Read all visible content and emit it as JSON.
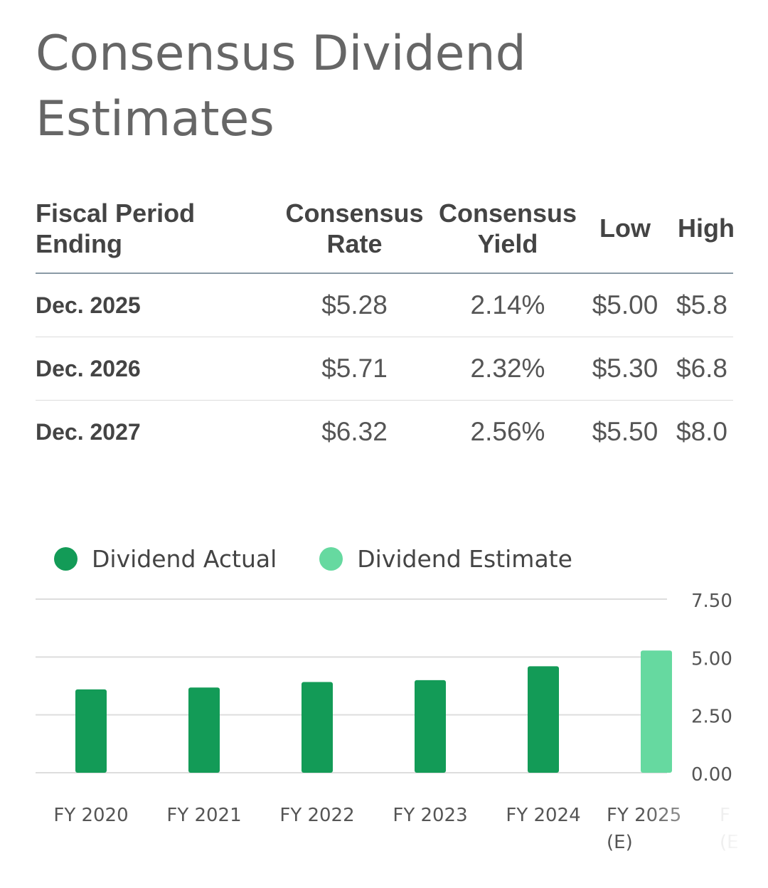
{
  "page": {
    "title": "Consensus Dividend Estimates"
  },
  "table": {
    "headers": [
      {
        "line1": "Fiscal Period",
        "line2": "Ending"
      },
      {
        "line1": "Consensus",
        "line2": "Rate"
      },
      {
        "line1": "Consensus",
        "line2": "Yield"
      },
      {
        "line1": "Low",
        "line2": ""
      },
      {
        "line1": "High",
        "line2": ""
      }
    ],
    "rows": [
      {
        "period": "Dec. 2025",
        "rate": "$5.28",
        "yield": "2.14%",
        "low": "$5.00",
        "high": "$5.8"
      },
      {
        "period": "Dec. 2026",
        "rate": "$5.71",
        "yield": "2.32%",
        "low": "$5.30",
        "high": "$6.8"
      },
      {
        "period": "Dec. 2027",
        "rate": "$6.32",
        "yield": "2.56%",
        "low": "$5.50",
        "high": "$8.0"
      }
    ]
  },
  "legend": {
    "actual": "Dividend Actual",
    "estimate": "Dividend Estimate"
  },
  "colors": {
    "actual": "#139b57",
    "estimate": "#66d9a0",
    "grid": "#dddddd",
    "axis_text": "#555555",
    "title": "#666666"
  },
  "chart_data": {
    "type": "bar",
    "categories": [
      "FY 2020",
      "FY 2021",
      "FY 2022",
      "FY 2023",
      "FY 2024",
      "FY 2025\n(E)",
      "F\n(E"
    ],
    "series": [
      {
        "name": "Dividend Actual",
        "values": [
          3.6,
          3.68,
          3.92,
          4.0,
          4.6,
          null,
          null
        ]
      },
      {
        "name": "Dividend Estimate",
        "values": [
          null,
          null,
          null,
          null,
          null,
          5.28,
          null
        ]
      }
    ],
    "y_ticks": [
      "7.50",
      "5.00",
      "2.50",
      "0.00"
    ],
    "ylim": [
      0,
      7.5
    ],
    "y_axis_position": "right",
    "grid": true,
    "legend_position": "top-left",
    "title": "",
    "xlabel": "",
    "ylabel": ""
  }
}
